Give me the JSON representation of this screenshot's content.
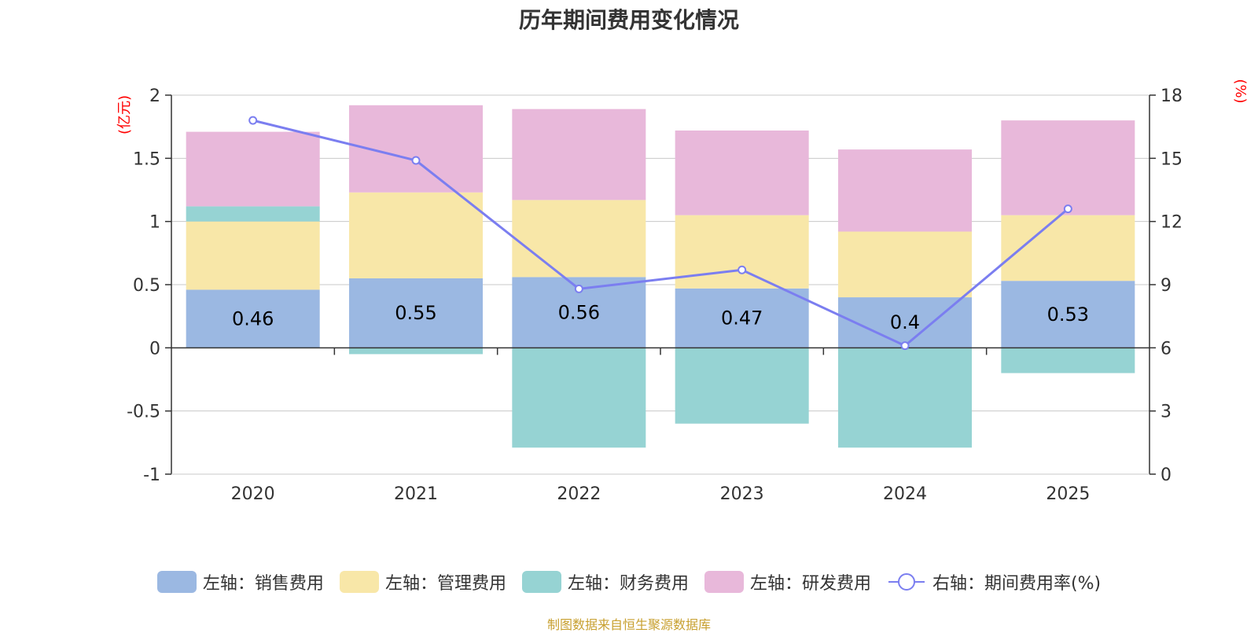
{
  "chart_data": {
    "type": "bar",
    "stacked": true,
    "title": "历年期间费用变化情况",
    "categories": [
      "2020",
      "2021",
      "2022",
      "2023",
      "2024",
      "2025"
    ],
    "left_axis": {
      "unit": "(亿元)",
      "ylim": [
        -1,
        2
      ],
      "ticks": [
        "-1",
        "-0.5",
        "0",
        "0.5",
        "1",
        "1.5",
        "2"
      ],
      "tick_values": [
        -1,
        -0.5,
        0,
        0.5,
        1,
        1.5,
        2
      ]
    },
    "right_axis": {
      "unit": "(%)",
      "ylim": [
        0,
        18
      ],
      "ticks": [
        "0",
        "3",
        "6",
        "9",
        "12",
        "15",
        "18"
      ],
      "tick_values": [
        0,
        3,
        6,
        9,
        12,
        15,
        18
      ]
    },
    "series": [
      {
        "name": "左轴：销售费用",
        "color": "#9bb8e2",
        "values": [
          0.46,
          0.55,
          0.56,
          0.47,
          0.4,
          0.53
        ],
        "labels": [
          "0.46",
          "0.55",
          "0.56",
          "0.47",
          "0.4",
          "0.53"
        ]
      },
      {
        "name": "左轴：管理费用",
        "color": "#f8e7a8",
        "values": [
          0.54,
          0.68,
          0.61,
          0.58,
          0.52,
          0.52
        ]
      },
      {
        "name": "左轴：财务费用",
        "color": "#96d3d3",
        "values": [
          0.12,
          -0.05,
          -0.79,
          -0.6,
          -0.79,
          -0.2
        ]
      },
      {
        "name": "左轴：研发费用",
        "color": "#e8b8da",
        "values": [
          0.59,
          0.69,
          0.72,
          0.67,
          0.65,
          0.75
        ]
      }
    ],
    "line_series": {
      "name": "右轴：期间费用率(%)",
      "color": "#7b7ef0",
      "values": [
        16.8,
        14.9,
        8.8,
        9.7,
        6.1,
        12.6
      ]
    },
    "source": "制图数据来自恒生聚源数据库",
    "source_color": "#c8a030"
  }
}
